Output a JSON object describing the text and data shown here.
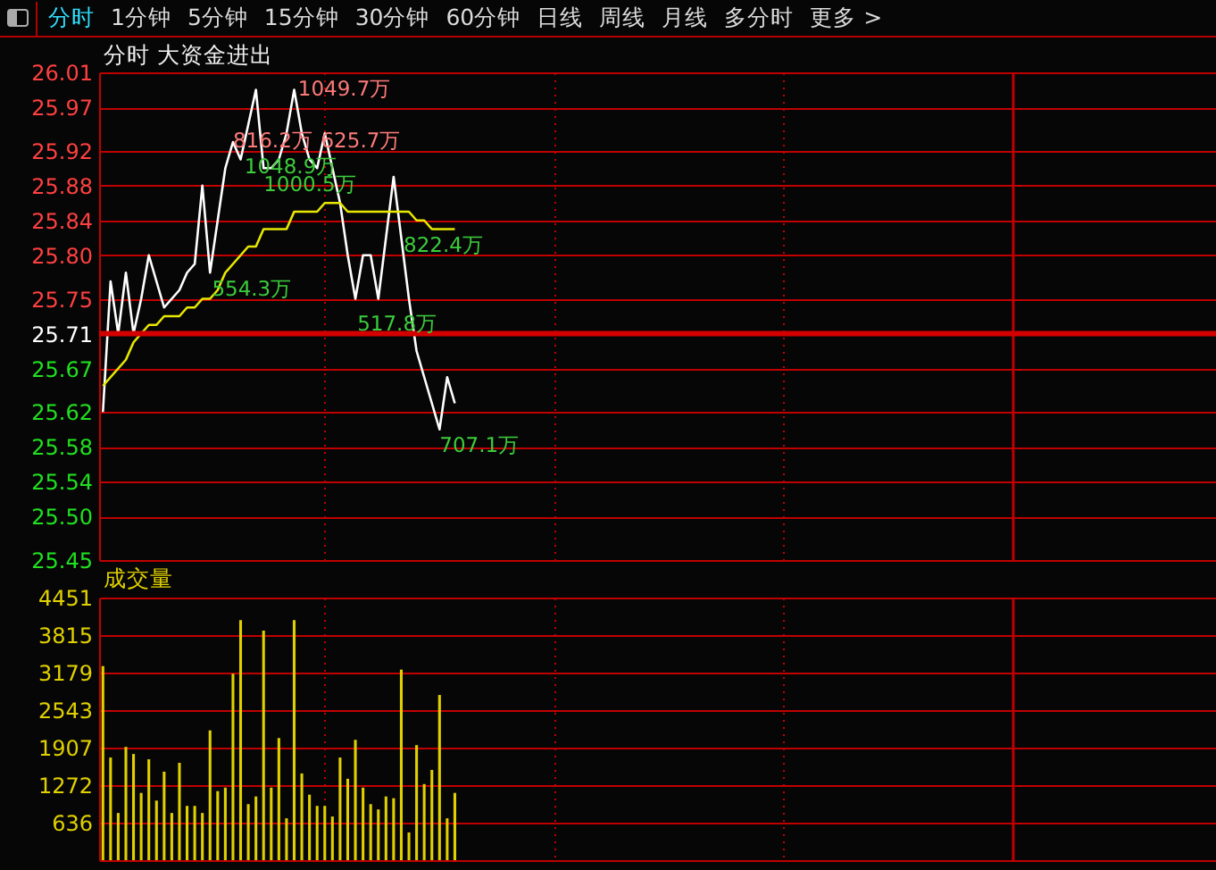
{
  "chart_data": [
    {
      "type": "other",
      "annotations": [
        "分时",
        "1分钟",
        "5分钟",
        "15分钟",
        "30分钟",
        "60分钟",
        "日线",
        "周线",
        "月线",
        "多分时",
        "更多 >"
      ]
    },
    {
      "type": "line",
      "title": "分时 大资金进出",
      "annotations": [
        "1049.7万",
        "816.2万",
        "625.7万",
        "1048.9万",
        "1000.5万",
        "554.3万",
        "822.4万",
        "517.8万",
        "707.1万"
      ],
      "categories": [
        null,
        null,
        null,
        null,
        null,
        null,
        null,
        null,
        null,
        null,
        null,
        null,
        null,
        null,
        null,
        null,
        null,
        null,
        null,
        null,
        null,
        null,
        null,
        null,
        null,
        null,
        null,
        null,
        null,
        null,
        null,
        null,
        null,
        null,
        null,
        null,
        null,
        null,
        null,
        null,
        null,
        null,
        null,
        null,
        null,
        null,
        null,
        null,
        null,
        null,
        null,
        null,
        null,
        null,
        null,
        null,
        null,
        null,
        null,
        null,
        null,
        null,
        null,
        null,
        null,
        null,
        null,
        null,
        null,
        null,
        null,
        null,
        null,
        null,
        null,
        null,
        null,
        null,
        null,
        null,
        null,
        null,
        null,
        null,
        null,
        null,
        null,
        null,
        null,
        null,
        null,
        null,
        null,
        null,
        null,
        null,
        null,
        null,
        null,
        null,
        null,
        null,
        null,
        null,
        null,
        null,
        null,
        null,
        null,
        null,
        null,
        null,
        null,
        null,
        null,
        null,
        null,
        null,
        null,
        null,
        null,
        null,
        null,
        null,
        null,
        null,
        null,
        null,
        null,
        null,
        null,
        null,
        null,
        null,
        null,
        null,
        null,
        null,
        null,
        null,
        null,
        null,
        null,
        null,
        null,
        null
      ],
      "series": [
        {
          "color": "#ffffff",
          "values": [
            25.62,
            25.77,
            25.71,
            25.78,
            25.71,
            25.75,
            25.8,
            25.77,
            25.74,
            25.75,
            25.76,
            25.78,
            25.79,
            25.88,
            25.78,
            25.84,
            25.9,
            25.93,
            25.91,
            25.95,
            25.99,
            25.9,
            25.9,
            25.91,
            25.94,
            25.99,
            25.94,
            25.91,
            25.9,
            25.94,
            25.9,
            25.86,
            25.8,
            25.75,
            25.8,
            25.8,
            25.75,
            25.82,
            25.89,
            25.82,
            25.75,
            25.69,
            25.66,
            25.63,
            25.6,
            25.66,
            25.63,
            null,
            null,
            null,
            null,
            null,
            null,
            null,
            null,
            null,
            null,
            null,
            null,
            null,
            null,
            null,
            null,
            null,
            null,
            null,
            null,
            null,
            null,
            null,
            null,
            null,
            null,
            null,
            null,
            null,
            null,
            null,
            null,
            null,
            null,
            null,
            null,
            null,
            null,
            null,
            null,
            null,
            null,
            null,
            null,
            null,
            null,
            null,
            null,
            null,
            null,
            null,
            null,
            null,
            null,
            null,
            null,
            null,
            null,
            null,
            null,
            null,
            null,
            null,
            null,
            null,
            null,
            null,
            null,
            null,
            null,
            null,
            null,
            null,
            null,
            null,
            null,
            null,
            null,
            null,
            null,
            null,
            null,
            null,
            null,
            null,
            null,
            null,
            null,
            null,
            null,
            null,
            null,
            null,
            null,
            null,
            null,
            null,
            null,
            null
          ]
        },
        {
          "color": "#e8e800",
          "values": [
            25.65,
            25.66,
            25.67,
            25.68,
            25.7,
            25.71,
            25.72,
            25.72,
            25.73,
            25.73,
            25.73,
            25.74,
            25.74,
            25.75,
            25.75,
            25.76,
            25.78,
            25.79,
            25.8,
            25.81,
            25.81,
            25.83,
            25.83,
            25.83,
            25.83,
            25.85,
            25.85,
            25.85,
            25.85,
            25.86,
            25.86,
            25.86,
            25.85,
            25.85,
            25.85,
            25.85,
            25.85,
            25.85,
            25.85,
            25.85,
            25.85,
            25.84,
            25.84,
            25.83,
            25.83,
            25.83,
            25.83,
            null,
            null,
            null,
            null,
            null,
            null,
            null,
            null,
            null,
            null,
            null,
            null,
            null,
            null,
            null,
            null,
            null,
            null,
            null,
            null,
            null,
            null,
            null,
            null,
            null,
            null,
            null,
            null,
            null,
            null,
            null,
            null,
            null,
            null,
            null,
            null,
            null,
            null,
            null,
            null,
            null,
            null,
            null,
            null,
            null,
            null,
            null,
            null,
            null,
            null,
            null,
            null,
            null,
            null,
            null,
            null,
            null,
            null,
            null,
            null,
            null,
            null,
            null,
            null,
            null,
            null,
            null,
            null,
            null,
            null,
            null,
            null,
            null,
            null,
            null,
            null,
            null,
            null,
            null,
            null,
            null,
            null,
            null,
            null,
            null,
            null,
            null,
            null,
            null,
            null,
            null,
            null,
            null,
            null,
            null,
            null,
            null,
            null,
            null
          ]
        }
      ],
      "ylim": [
        25.45,
        26.01
      ],
      "yticks": [
        26.01,
        25.97,
        25.92,
        25.88,
        25.84,
        {
          "value": 25.8,
          "label": "25.80"
        },
        25.75,
        25.71,
        25.67,
        25.62,
        25.58,
        25.54,
        {
          "value": 25.5,
          "label": "25.50"
        },
        25.45
      ],
      "ref_lines": [
        {
          "axis": "y",
          "value": 25.71
        }
      ],
      "grid": true
    },
    {
      "type": "bar",
      "title": "成交量",
      "color": "#e0d000",
      "categories": [
        null,
        null,
        null,
        null,
        null,
        null,
        null,
        null,
        null,
        null,
        null,
        null,
        null,
        null,
        null,
        null,
        null,
        null,
        null,
        null,
        null,
        null,
        null,
        null,
        null,
        null,
        null,
        null,
        null,
        null,
        null,
        null,
        null,
        null,
        null,
        null,
        null,
        null,
        null,
        null,
        null,
        null,
        null,
        null,
        null,
        null,
        null,
        null,
        null,
        null,
        null,
        null,
        null,
        null,
        null,
        null,
        null,
        null,
        null,
        null,
        null,
        null,
        null,
        null,
        null,
        null,
        null,
        null,
        null,
        null,
        null,
        null,
        null,
        null,
        null,
        null,
        null,
        null,
        null,
        null,
        null,
        null,
        null,
        null,
        null,
        null,
        null,
        null,
        null,
        null,
        null,
        null,
        null,
        null,
        null,
        null,
        null,
        null,
        null,
        null,
        null,
        null,
        null,
        null,
        null,
        null,
        null,
        null,
        null,
        null,
        null,
        null,
        null,
        null,
        null,
        null,
        null,
        null,
        null,
        null,
        null,
        null,
        null,
        null,
        null,
        null,
        null,
        null,
        null,
        null,
        null,
        null,
        null,
        null,
        null,
        null,
        null,
        null,
        null,
        null,
        null,
        null,
        null,
        null,
        null,
        null
      ],
      "values": [
        3290,
        1740,
        800,
        1920,
        1800,
        1140,
        1710,
        1010,
        1500,
        800,
        1650,
        920,
        920,
        800,
        2200,
        1170,
        1230,
        3160,
        4070,
        950,
        1080,
        3890,
        1230,
        2070,
        710,
        4070,
        1470,
        1110,
        920,
        920,
        740,
        1740,
        1380,
        2040,
        1230,
        950,
        860,
        1080,
        1050,
        3230,
        470,
        1950,
        1290,
        1530,
        2800,
        710,
        1140,
        null,
        null,
        null,
        null,
        null,
        null,
        null,
        null,
        null,
        null,
        null,
        null,
        null,
        null,
        null,
        null,
        null,
        null,
        null,
        null,
        null,
        null,
        null,
        null,
        null,
        null,
        null,
        null,
        null,
        null,
        null,
        null,
        null,
        null,
        null,
        null,
        null,
        null,
        null,
        null,
        null,
        null,
        null,
        null,
        null,
        null,
        null,
        null,
        null,
        null,
        null,
        null,
        null,
        null,
        null,
        null,
        null,
        null,
        null,
        null,
        null,
        null,
        null,
        null,
        null,
        null,
        null,
        null,
        null,
        null,
        null,
        null,
        null,
        null,
        null,
        null,
        null,
        null,
        null,
        null,
        null,
        null,
        null,
        null,
        null,
        null,
        null,
        null,
        null,
        null,
        null,
        null,
        null,
        null,
        null,
        null,
        null,
        null,
        null
      ],
      "ylim": [
        0,
        4451
      ],
      "yticks": [
        636,
        1272,
        1907,
        2543,
        3179,
        3815,
        4451
      ],
      "grid": true
    }
  ]
}
